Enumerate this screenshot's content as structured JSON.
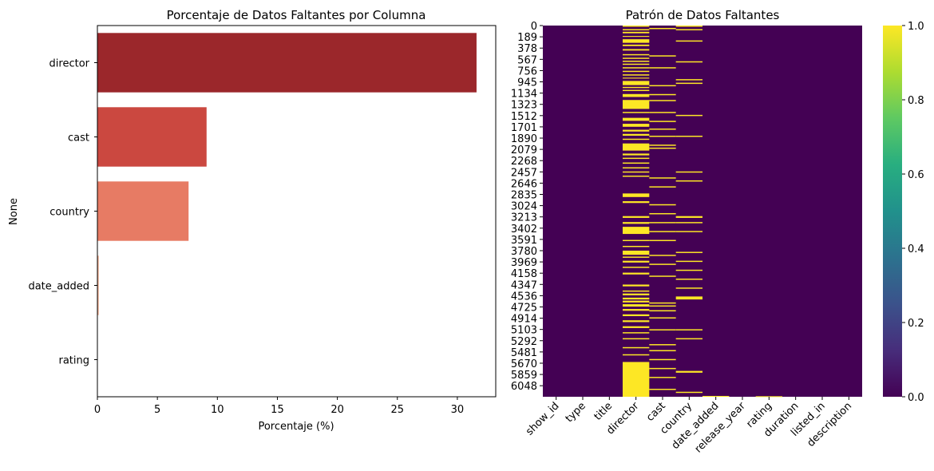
{
  "chart_data": [
    {
      "type": "bar",
      "orientation": "horizontal",
      "title": "Porcentaje de Datos Faltantes por Columna",
      "xlabel": "Porcentaje (%)",
      "ylabel": "None",
      "categories": [
        "director",
        "cast",
        "country",
        "date_added",
        "rating"
      ],
      "values": [
        31.6,
        9.1,
        7.6,
        0.11,
        0.02
      ],
      "colors": [
        "#9b272b",
        "#cb4840",
        "#e77b64",
        "#f1a98a",
        "#fbd8c5"
      ],
      "xlim": [
        0,
        33.2
      ],
      "xticks": [
        0,
        5,
        10,
        15,
        20,
        25,
        30
      ],
      "grid": false
    },
    {
      "type": "heatmap",
      "title": "Patrón de Datos Faltantes",
      "columns": [
        "show_id",
        "type",
        "title",
        "director",
        "cast",
        "country",
        "date_added",
        "release_year",
        "rating",
        "duration",
        "listed_in",
        "description"
      ],
      "row_count": 6234,
      "row_ticks": [
        0,
        189,
        378,
        567,
        756,
        945,
        1134,
        1323,
        1512,
        1701,
        1890,
        2079,
        2268,
        2457,
        2646,
        2835,
        3024,
        3213,
        3402,
        3591,
        3780,
        3969,
        4158,
        4347,
        4536,
        4725,
        4914,
        5103,
        5292,
        5481,
        5670,
        5859,
        6048
      ],
      "colormap": "viridis",
      "missing_color": "#fde725",
      "present_color": "#440154",
      "colorbar": {
        "ticks": [
          "0.0",
          "0.2",
          "0.4",
          "0.6",
          "0.8",
          "1.0"
        ],
        "range": [
          0,
          1
        ]
      },
      "missing_row_ranges": {
        "director": [
          [
            0,
            20
          ],
          [
            60,
            80
          ],
          [
            105,
            130
          ],
          [
            175,
            190
          ],
          [
            230,
            290
          ],
          [
            320,
            345
          ],
          [
            395,
            420
          ],
          [
            480,
            500
          ],
          [
            540,
            560
          ],
          [
            590,
            610
          ],
          [
            640,
            660
          ],
          [
            700,
            720
          ],
          [
            760,
            780
          ],
          [
            820,
            840
          ],
          [
            875,
            890
          ],
          [
            930,
            1000
          ],
          [
            1030,
            1050
          ],
          [
            1080,
            1100
          ],
          [
            1150,
            1200
          ],
          [
            1250,
            1400
          ],
          [
            1450,
            1470
          ],
          [
            1550,
            1600
          ],
          [
            1650,
            1700
          ],
          [
            1750,
            1780
          ],
          [
            1820,
            1850
          ],
          [
            1900,
            1920
          ],
          [
            1980,
            2100
          ],
          [
            2150,
            2180
          ],
          [
            2220,
            2240
          ],
          [
            2300,
            2320
          ],
          [
            2380,
            2400
          ],
          [
            2450,
            2470
          ],
          [
            2520,
            2540
          ],
          [
            2820,
            2880
          ],
          [
            2950,
            2980
          ],
          [
            3200,
            3230
          ],
          [
            3300,
            3330
          ],
          [
            3380,
            3500
          ],
          [
            3600,
            3620
          ],
          [
            3700,
            3720
          ],
          [
            3780,
            3850
          ],
          [
            3880,
            3900
          ],
          [
            3950,
            3980
          ],
          [
            4050,
            4070
          ],
          [
            4150,
            4180
          ],
          [
            4350,
            4380
          ],
          [
            4450,
            4470
          ],
          [
            4500,
            4530
          ],
          [
            4570,
            4600
          ],
          [
            4620,
            4650
          ],
          [
            4680,
            4720
          ],
          [
            4760,
            4790
          ],
          [
            4850,
            4880
          ],
          [
            4950,
            4980
          ],
          [
            5050,
            5080
          ],
          [
            5150,
            5170
          ],
          [
            5250,
            5270
          ],
          [
            5400,
            5420
          ],
          [
            5520,
            5540
          ],
          [
            5650,
            6234
          ]
        ],
        "cast": [
          [
            40,
            60
          ],
          [
            500,
            520
          ],
          [
            700,
            720
          ],
          [
            1000,
            1020
          ],
          [
            1150,
            1170
          ],
          [
            1250,
            1270
          ],
          [
            1450,
            1470
          ],
          [
            1600,
            1620
          ],
          [
            1730,
            1750
          ],
          [
            1850,
            1870
          ],
          [
            2000,
            2020
          ],
          [
            2050,
            2070
          ],
          [
            2550,
            2570
          ],
          [
            2700,
            2720
          ],
          [
            3000,
            3020
          ],
          [
            3150,
            3170
          ],
          [
            3300,
            3320
          ],
          [
            3450,
            3470
          ],
          [
            3600,
            3620
          ],
          [
            3850,
            3870
          ],
          [
            4000,
            4020
          ],
          [
            4200,
            4220
          ],
          [
            4650,
            4670
          ],
          [
            4700,
            4720
          ],
          [
            4780,
            4800
          ],
          [
            4900,
            4920
          ],
          [
            5100,
            5120
          ],
          [
            5350,
            5370
          ],
          [
            5450,
            5470
          ],
          [
            5600,
            5620
          ],
          [
            5750,
            5770
          ],
          [
            5900,
            5920
          ],
          [
            6100,
            6120
          ]
        ],
        "country": [
          [
            0,
            20
          ],
          [
            60,
            80
          ],
          [
            250,
            270
          ],
          [
            600,
            620
          ],
          [
            900,
            920
          ],
          [
            960,
            980
          ],
          [
            1500,
            1520
          ],
          [
            1850,
            1870
          ],
          [
            2450,
            2470
          ],
          [
            2600,
            2620
          ],
          [
            3200,
            3230
          ],
          [
            3300,
            3320
          ],
          [
            3450,
            3470
          ],
          [
            3800,
            3820
          ],
          [
            3950,
            3970
          ],
          [
            4100,
            4120
          ],
          [
            4250,
            4270
          ],
          [
            4400,
            4420
          ],
          [
            4550,
            4600
          ],
          [
            5100,
            5120
          ],
          [
            5250,
            5270
          ],
          [
            5800,
            5830
          ],
          [
            6150,
            6170
          ]
        ],
        "date_added": [
          [
            6220,
            6234
          ]
        ],
        "rating": [
          [
            6225,
            6234
          ]
        ]
      }
    }
  ]
}
